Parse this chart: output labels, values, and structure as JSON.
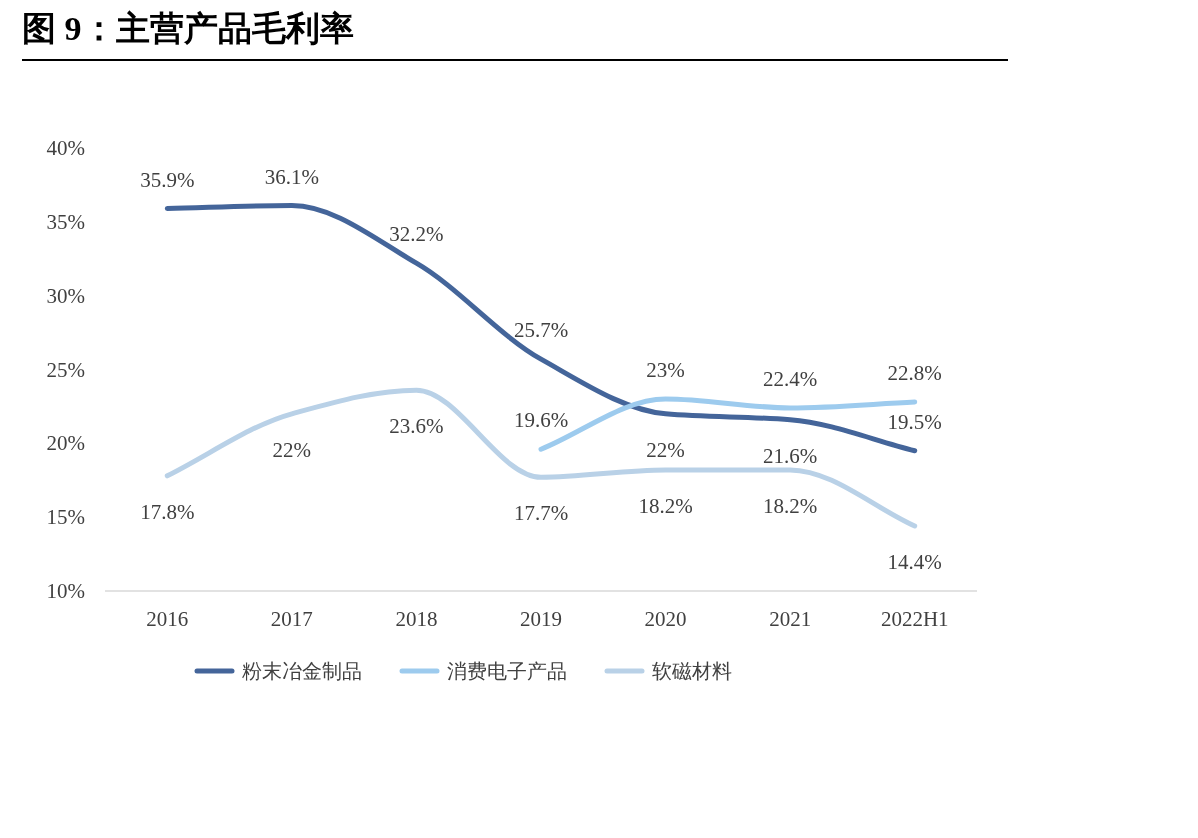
{
  "chart_data": {
    "type": "line",
    "title": "图 9：主营产品毛利率",
    "categories": [
      "2016",
      "2017",
      "2018",
      "2019",
      "2020",
      "2021",
      "2022H1"
    ],
    "series": [
      {
        "name": "粉末冶金制品",
        "color": "#44659a",
        "values": [
          35.9,
          36.1,
          32.2,
          25.7,
          22,
          21.6,
          19.5
        ],
        "value_labels": [
          "35.9%",
          "36.1%",
          "32.2%",
          "25.7%",
          "22%",
          "21.6%",
          "19.5%"
        ]
      },
      {
        "name": "消费电子产品",
        "color": "#9dcbee",
        "values": [
          null,
          null,
          null,
          19.6,
          23,
          22.4,
          22.8
        ],
        "value_labels": [
          null,
          null,
          null,
          "19.6%",
          "23%",
          "22.4%",
          "22.8%"
        ]
      },
      {
        "name": "软磁材料",
        "color": "#b9d1e7",
        "values": [
          17.8,
          22,
          23.6,
          17.7,
          18.2,
          18.2,
          14.4
        ],
        "value_labels": [
          "17.8%",
          "22%",
          "23.6%",
          "17.7%",
          "18.2%",
          "18.2%",
          "14.4%"
        ]
      }
    ],
    "ylim": [
      10,
      40
    ],
    "yticks": [
      {
        "value": 10,
        "label": "10%"
      },
      {
        "value": 15,
        "label": "15%"
      },
      {
        "value": 20,
        "label": "20%"
      },
      {
        "value": 25,
        "label": "25%"
      },
      {
        "value": 30,
        "label": "30%"
      },
      {
        "value": 35,
        "label": "35%"
      },
      {
        "value": 40,
        "label": "40%"
      }
    ],
    "grid": false,
    "legend": "bottom",
    "marker": "none",
    "line_style": "solid"
  }
}
